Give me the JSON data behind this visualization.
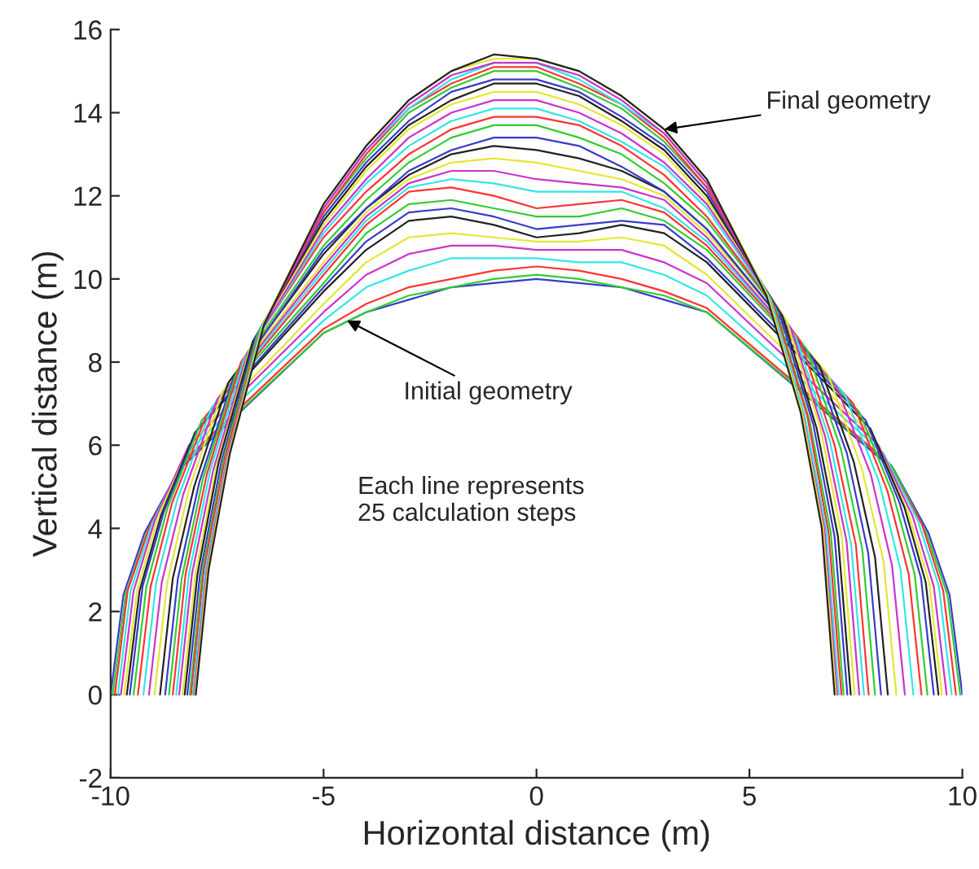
{
  "chart_data": {
    "type": "line",
    "xlabel": "Horizontal distance (m)",
    "ylabel": "Vertical distance (m)",
    "xlim": [
      -10,
      10
    ],
    "ylim": [
      -2,
      16
    ],
    "xticks": [
      -10,
      -5,
      0,
      5,
      10
    ],
    "yticks": [
      -2,
      0,
      2,
      4,
      6,
      8,
      10,
      12,
      14,
      16
    ],
    "grid": false,
    "annotations": [
      {
        "text": "Final geometry",
        "x": 3.0,
        "y": 13.6
      },
      {
        "text": "Initial geometry",
        "x": -4.45,
        "y": 9.0
      },
      "Each line represents\n25 calculation steps"
    ],
    "series": [
      {
        "color": "#3a3acc",
        "x": [
          -10,
          -9.7,
          -9.2,
          -8.4,
          -5,
          -4,
          -3,
          -2,
          -1,
          0,
          1,
          2,
          3,
          4,
          8.4,
          9.2,
          9.7,
          10
        ],
        "values": [
          0,
          2.4,
          3.9,
          5.4,
          8.7,
          9.2,
          9.5,
          9.8,
          9.9,
          10,
          9.9,
          9.8,
          9.5,
          9.2,
          5.4,
          3.9,
          2.4,
          0
        ]
      },
      {
        "color": "#33cc33",
        "x": [
          -9.95,
          -9.65,
          -9.15,
          -8.35,
          -5,
          -4,
          -3,
          -2,
          -1,
          0,
          1,
          2,
          3,
          4,
          8.35,
          9.15,
          9.65,
          9.95
        ],
        "values": [
          0,
          2.4,
          3.9,
          5.5,
          8.7,
          9.2,
          9.6,
          9.8,
          10.0,
          10.1,
          10.0,
          9.8,
          9.6,
          9.2,
          5.5,
          3.9,
          2.4,
          0
        ]
      },
      {
        "color": "#ff3333",
        "x": [
          -9.9,
          -9.6,
          -9.1,
          -8.3,
          -5,
          -4,
          -3,
          -2,
          -1,
          0,
          1,
          2,
          3,
          4,
          8.25,
          9.05,
          9.55,
          9.85
        ],
        "values": [
          0,
          2.5,
          4.0,
          5.6,
          8.8,
          9.4,
          9.8,
          10.0,
          10.2,
          10.3,
          10.2,
          10.0,
          9.7,
          9.3,
          5.6,
          4.1,
          2.5,
          0
        ]
      },
      {
        "color": "#33e6e6",
        "x": [
          -9.83,
          -9.53,
          -9.03,
          -8.23,
          -5,
          -4,
          -3,
          -2,
          -1,
          0,
          1,
          2,
          3,
          4,
          8.15,
          8.95,
          9.45,
          9.75
        ],
        "values": [
          0,
          2.5,
          4.1,
          5.8,
          9.0,
          9.8,
          10.2,
          10.5,
          10.5,
          10.5,
          10.4,
          10.4,
          10.1,
          9.6,
          5.8,
          4.2,
          2.6,
          0
        ]
      },
      {
        "color": "#cc33cc",
        "x": [
          -9.76,
          -9.46,
          -8.96,
          -8.16,
          -5,
          -4,
          -3,
          -2,
          -1,
          0,
          1,
          2,
          3,
          4,
          8.03,
          8.83,
          9.33,
          9.63
        ],
        "values": [
          0,
          2.5,
          4.2,
          6.0,
          9.2,
          10.1,
          10.6,
          10.8,
          10.8,
          10.7,
          10.7,
          10.7,
          10.4,
          9.9,
          6.0,
          4.3,
          2.6,
          0
        ]
      },
      {
        "color": "#e6e633",
        "x": [
          -9.68,
          -9.38,
          -8.88,
          -8.08,
          -5,
          -4,
          -3,
          -2,
          -1,
          0,
          1,
          2,
          3,
          4,
          7.92,
          8.72,
          9.22,
          9.52
        ],
        "values": [
          0,
          2.5,
          4.3,
          6.1,
          9.4,
          10.4,
          11.0,
          11.1,
          11.0,
          10.9,
          10.9,
          11.0,
          10.8,
          10.1,
          6.2,
          4.4,
          2.7,
          0
        ]
      },
      {
        "color": "#222222",
        "x": [
          -9.62,
          -9.32,
          -8.82,
          -8.02,
          -5,
          -4,
          -3,
          -2,
          -1,
          0,
          1,
          2,
          3,
          4,
          7.84,
          8.64,
          9.14,
          9.44
        ],
        "values": [
          0,
          2.5,
          4.3,
          6.3,
          9.7,
          10.7,
          11.4,
          11.5,
          11.3,
          11.0,
          11.1,
          11.3,
          11.1,
          10.4,
          6.4,
          4.5,
          2.7,
          0
        ]
      },
      {
        "color": "#3a3acc",
        "x": [
          -9.55,
          -9.25,
          -8.75,
          -7.95,
          -5,
          -4,
          -3,
          -2,
          -1,
          0,
          1,
          2,
          3,
          4,
          7.73,
          8.53,
          9.03,
          9.33
        ],
        "values": [
          0,
          2.6,
          4.4,
          6.4,
          9.8,
          10.9,
          11.6,
          11.7,
          11.5,
          11.2,
          11.3,
          11.4,
          11.3,
          10.5,
          6.6,
          4.6,
          2.8,
          0
        ]
      },
      {
        "color": "#33cc33",
        "x": [
          -9.46,
          -9.16,
          -8.66,
          -7.86,
          -5,
          -4,
          -3,
          -2,
          -1,
          0,
          1,
          2,
          3,
          4,
          7.58,
          8.38,
          8.88,
          9.18
        ],
        "values": [
          0,
          2.6,
          4.5,
          6.6,
          9.9,
          11.1,
          11.8,
          11.9,
          11.7,
          11.5,
          11.5,
          11.7,
          11.4,
          10.7,
          6.8,
          4.8,
          2.9,
          0
        ]
      },
      {
        "color": "#ff3333",
        "x": [
          -9.36,
          -9.06,
          -8.56,
          -7.76,
          -5,
          -4,
          -3,
          -2,
          -1,
          0,
          1,
          2,
          3,
          4,
          7.44,
          8.24,
          8.74,
          9.04
        ],
        "values": [
          0,
          2.6,
          4.6,
          6.7,
          10.1,
          11.3,
          12.1,
          12.2,
          12.0,
          11.7,
          11.8,
          11.9,
          11.6,
          10.8,
          7.0,
          4.9,
          2.9,
          0
        ]
      },
      {
        "color": "#33e6e6",
        "x": [
          -9.23,
          -8.93,
          -8.43,
          -7.63,
          -5,
          -4,
          -3,
          -2,
          -1,
          0,
          1,
          2,
          3,
          4,
          7.25,
          8.05,
          8.55,
          8.85
        ],
        "values": [
          0,
          2.7,
          4.7,
          6.9,
          10.2,
          11.4,
          12.2,
          12.4,
          12.3,
          12.1,
          12.1,
          12.1,
          11.7,
          10.9,
          7.2,
          5.1,
          3.0,
          0
        ]
      },
      {
        "color": "#cc33cc",
        "x": [
          -9.1,
          -8.8,
          -8.3,
          -7.5,
          -5,
          -4,
          -3,
          -2,
          -1,
          0,
          1,
          2,
          3,
          4,
          7.05,
          7.85,
          8.35,
          8.65
        ],
        "values": [
          0,
          2.7,
          4.8,
          7.1,
          10.3,
          11.5,
          12.3,
          12.6,
          12.6,
          12.4,
          12.3,
          12.2,
          11.9,
          11.0,
          7.4,
          5.3,
          3.1,
          0
        ]
      },
      {
        "color": "#e6e633",
        "x": [
          -8.97,
          -8.67,
          -8.17,
          -7.37,
          -5,
          -4,
          -3,
          -2,
          -1,
          0,
          1,
          2,
          3,
          4,
          6.85,
          7.65,
          8.15,
          8.45
        ],
        "values": [
          0,
          2.7,
          4.9,
          7.3,
          10.4,
          11.6,
          12.4,
          12.8,
          12.9,
          12.8,
          12.6,
          12.4,
          12.0,
          11.1,
          7.7,
          5.4,
          3.2,
          0
        ]
      },
      {
        "color": "#222222",
        "x": [
          -8.84,
          -8.54,
          -8.04,
          -7.24,
          -5,
          -4,
          -3,
          -2,
          -1,
          0,
          1,
          2,
          3,
          4,
          6.65,
          7.45,
          7.95,
          8.25
        ],
        "values": [
          0,
          2.8,
          5.0,
          7.5,
          10.6,
          11.7,
          12.5,
          13.0,
          13.2,
          13.1,
          12.9,
          12.6,
          12.1,
          11.2,
          7.9,
          5.6,
          3.3,
          0
        ]
      },
      {
        "color": "#3a3acc",
        "x": [
          -8.72,
          -8.42,
          -7.92,
          -7.12,
          -5,
          -4,
          -3,
          -2,
          -1,
          0,
          1,
          2,
          3,
          4,
          6.49,
          7.29,
          7.79,
          8.09
        ],
        "values": [
          0,
          2.8,
          5.1,
          7.6,
          10.7,
          11.7,
          12.6,
          13.1,
          13.4,
          13.4,
          13.2,
          12.7,
          12.1,
          11.2,
          8.1,
          5.8,
          3.4,
          0
        ]
      },
      {
        "color": "#33cc33",
        "x": [
          -8.63,
          -8.33,
          -7.83,
          -7.03,
          -5,
          -4,
          -3,
          -2,
          -1,
          0,
          1,
          2,
          3,
          4,
          6.35,
          7.15,
          7.65,
          7.95
        ],
        "values": [
          0,
          2.8,
          5.2,
          7.8,
          10.8,
          11.9,
          12.8,
          13.4,
          13.7,
          13.7,
          13.4,
          13.0,
          12.3,
          11.4,
          8.3,
          5.9,
          3.5,
          0
        ]
      },
      {
        "color": "#ff3333",
        "x": [
          -8.54,
          -8.24,
          -7.74,
          -6.94,
          -5,
          -4,
          -3,
          -2,
          -1,
          0,
          1,
          2,
          3,
          4,
          6.2,
          7.0,
          7.5,
          7.8
        ],
        "values": [
          0,
          2.9,
          5.3,
          8.0,
          11.0,
          12.1,
          13.0,
          13.6,
          13.9,
          13.9,
          13.7,
          13.2,
          12.5,
          11.5,
          8.5,
          6.0,
          3.6,
          0
        ]
      },
      {
        "color": "#33e6e6",
        "x": [
          -8.46,
          -8.16,
          -7.66,
          -6.86,
          -5,
          -4,
          -3,
          -2,
          -1,
          0,
          1,
          2,
          3,
          4,
          6.09,
          6.89,
          7.39,
          7.69
        ],
        "values": [
          0,
          2.9,
          5.4,
          8.1,
          11.1,
          12.3,
          13.2,
          13.8,
          14.1,
          14.1,
          13.8,
          13.3,
          12.7,
          11.7,
          8.6,
          6.1,
          3.6,
          0
        ]
      },
      {
        "color": "#cc33cc",
        "x": [
          -8.39,
          -8.09,
          -7.59,
          -6.79,
          -5,
          -4,
          -3,
          -2,
          -1,
          0,
          1,
          2,
          3,
          4,
          5.98,
          6.78,
          7.28,
          7.58
        ],
        "values": [
          0,
          2.9,
          5.4,
          8.2,
          11.2,
          12.4,
          13.4,
          14.0,
          14.3,
          14.3,
          14.0,
          13.5,
          12.8,
          11.8,
          8.8,
          6.2,
          3.7,
          0
        ]
      },
      {
        "color": "#e6e633",
        "x": [
          -8.31,
          -8.01,
          -7.51,
          -6.71,
          -5,
          -4,
          -3,
          -2,
          -1,
          0,
          1,
          2,
          3,
          4,
          5.87,
          6.67,
          7.17,
          7.47
        ],
        "values": [
          0,
          2.9,
          5.5,
          8.4,
          11.3,
          12.6,
          13.6,
          14.2,
          14.5,
          14.5,
          14.2,
          13.7,
          13.0,
          11.9,
          9.0,
          6.4,
          3.8,
          0
        ]
      },
      {
        "color": "#222222",
        "x": [
          -8.26,
          -7.96,
          -7.46,
          -6.66,
          -5,
          -4,
          -3,
          -2,
          -1,
          0,
          1,
          2,
          3,
          4,
          5.78,
          6.58,
          7.08,
          7.38
        ],
        "values": [
          0,
          2.9,
          5.6,
          8.5,
          11.4,
          12.7,
          13.7,
          14.3,
          14.7,
          14.7,
          14.4,
          13.8,
          13.1,
          12.0,
          9.1,
          6.4,
          3.8,
          0
        ]
      },
      {
        "color": "#3a3acc",
        "x": [
          -8.2,
          -7.9,
          -7.4,
          -6.6,
          -5,
          -4,
          -3,
          -2,
          -1,
          0,
          1,
          2,
          3,
          4,
          5.7,
          6.5,
          7.0,
          7.3
        ],
        "values": [
          0,
          2.9,
          5.6,
          8.6,
          11.5,
          12.8,
          13.8,
          14.5,
          14.8,
          14.8,
          14.5,
          13.9,
          13.2,
          12.1,
          9.2,
          6.5,
          3.8,
          0
        ]
      },
      {
        "color": "#33cc33",
        "x": [
          -8.14,
          -7.84,
          -7.34,
          -6.54,
          -5,
          -4,
          -3,
          -2,
          -1,
          0,
          1,
          2,
          3,
          4,
          5.61,
          6.41,
          6.91,
          7.21
        ],
        "values": [
          0,
          3.0,
          5.7,
          8.7,
          11.6,
          12.9,
          14.0,
          14.6,
          15.0,
          15.0,
          14.6,
          14.1,
          13.3,
          12.2,
          9.3,
          6.6,
          3.9,
          0
        ]
      },
      {
        "color": "#ff3333",
        "x": [
          -8.11,
          -7.81,
          -7.31,
          -6.51,
          -5,
          -4,
          -3,
          -2,
          -1,
          0,
          1,
          2,
          3,
          4,
          5.56,
          6.36,
          6.86,
          7.16
        ],
        "values": [
          0,
          3.0,
          5.7,
          8.7,
          11.6,
          13.0,
          14.1,
          14.7,
          15.1,
          15.1,
          14.7,
          14.2,
          13.4,
          12.2,
          9.4,
          6.7,
          3.9,
          0
        ]
      },
      {
        "color": "#33e6e6",
        "x": [
          -8.07,
          -7.77,
          -7.27,
          -6.47,
          -5,
          -4,
          -3,
          -2,
          -1,
          0,
          1,
          2,
          3,
          4,
          5.5,
          6.3,
          6.8,
          7.1
        ],
        "values": [
          0,
          3.0,
          5.7,
          8.8,
          11.7,
          13.1,
          14.1,
          14.8,
          15.2,
          15.2,
          14.8,
          14.2,
          13.5,
          12.3,
          9.5,
          6.7,
          4.0,
          0
        ]
      },
      {
        "color": "#cc33cc",
        "x": [
          -8.04,
          -7.74,
          -7.24,
          -6.44,
          -5,
          -4,
          -3,
          -2,
          -1,
          0,
          1,
          2,
          3,
          4,
          5.46,
          6.26,
          6.76,
          7.06
        ],
        "values": [
          0,
          3.0,
          5.8,
          8.8,
          11.7,
          13.1,
          14.2,
          14.9,
          15.2,
          15.2,
          14.9,
          14.3,
          13.5,
          12.3,
          9.5,
          6.7,
          4.0,
          0
        ]
      },
      {
        "color": "#e6e633",
        "x": [
          -8.02,
          -7.72,
          -7.22,
          -6.42,
          -5,
          -4,
          -3,
          -2,
          -1,
          0,
          1,
          2,
          3,
          4,
          5.43,
          6.23,
          6.73,
          7.03
        ],
        "values": [
          0,
          3.0,
          5.8,
          8.9,
          11.8,
          13.2,
          14.3,
          15.0,
          15.3,
          15.3,
          15.0,
          14.4,
          13.6,
          12.4,
          9.6,
          6.8,
          4.0,
          0
        ]
      },
      {
        "color": "#222222",
        "x": [
          -8,
          -7.7,
          -7.2,
          -6.4,
          -5,
          -4,
          -3,
          -2,
          -1,
          0,
          1,
          2,
          3,
          4,
          5.4,
          6.2,
          6.7,
          7
        ],
        "values": [
          0,
          3.0,
          5.8,
          8.9,
          11.8,
          13.2,
          14.3,
          15.0,
          15.4,
          15.3,
          15.0,
          14.4,
          13.6,
          12.4,
          9.6,
          6.8,
          4.0,
          0
        ]
      }
    ]
  }
}
